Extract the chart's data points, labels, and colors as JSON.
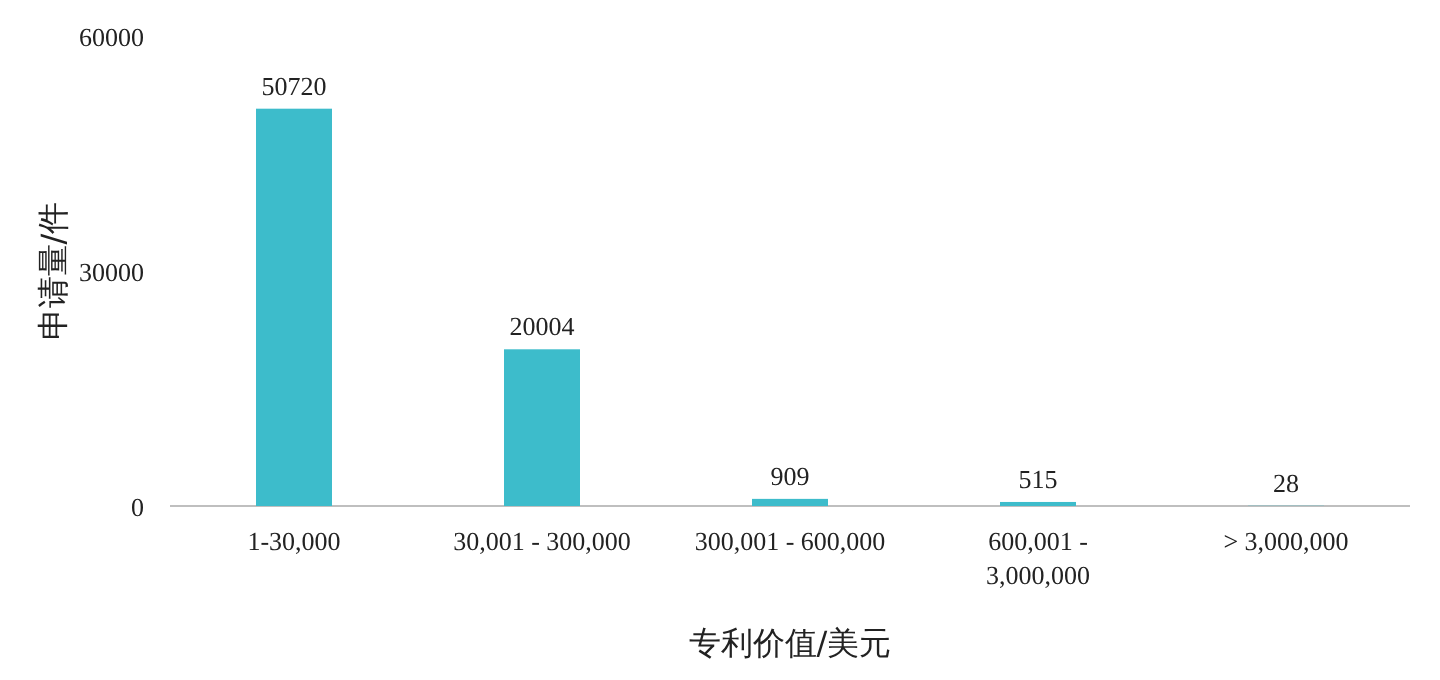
{
  "chart_data": {
    "type": "bar",
    "xlabel": "专利价值/美元",
    "ylabel": "申请量/件",
    "categories": [
      "1-30,000",
      "30,001 - 300,000",
      "300,001 - 600,000",
      "600,001 - 3,000,000",
      "> 3,000,000"
    ],
    "values": [
      50720,
      20004,
      909,
      515,
      28
    ],
    "color": "#3dbccb",
    "ylim": [
      0,
      60000
    ],
    "yticks": [
      0,
      30000,
      60000
    ],
    "data_labels": true,
    "grid": false
  }
}
